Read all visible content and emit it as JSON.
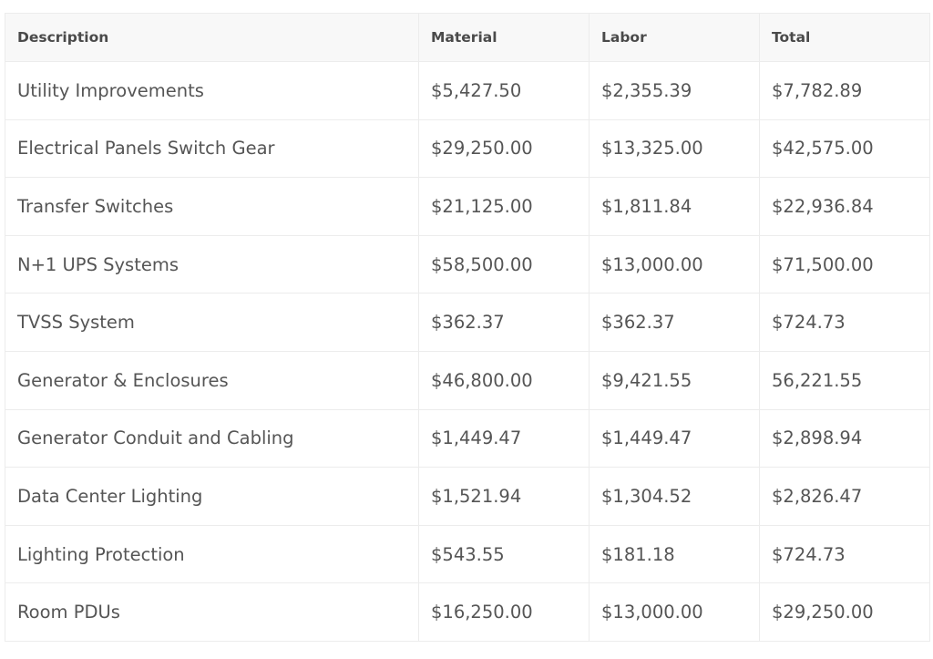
{
  "table": {
    "headers": [
      "Description",
      "Material",
      "Labor",
      "Total"
    ],
    "rows": [
      [
        "Utility Improvements",
        "$5,427.50",
        "$2,355.39",
        "$7,782.89"
      ],
      [
        "Electrical Panels Switch Gear",
        "$29,250.00",
        "$13,325.00",
        "$42,575.00"
      ],
      [
        "Transfer Switches",
        "$21,125.00",
        "$1,811.84",
        "$22,936.84"
      ],
      [
        "N+1 UPS Systems",
        "$58,500.00",
        "$13,000.00",
        "$71,500.00"
      ],
      [
        "TVSS System",
        "$362.37",
        "$362.37",
        "$724.73"
      ],
      [
        "Generator & Enclosures",
        "$46,800.00",
        "$9,421.55",
        "56,221.55"
      ],
      [
        "Generator Conduit and Cabling",
        "$1,449.47",
        "$1,449.47",
        "$2,898.94"
      ],
      [
        "Data Center Lighting",
        "$1,521.94",
        "$1,304.52",
        "$2,826.47"
      ],
      [
        "Lighting Protection",
        "$543.55",
        "$181.18",
        "$724.73"
      ],
      [
        "Room PDUs",
        "$16,250.00",
        "$13,000.00",
        "$29,250.00"
      ]
    ]
  }
}
